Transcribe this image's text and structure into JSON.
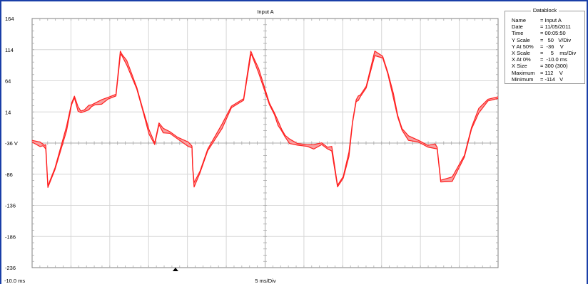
{
  "window": {
    "title": "Input A",
    "frame_color": "#1a3fa8"
  },
  "chart_data": {
    "type": "line",
    "title": "Input A",
    "xlabel": "5 ms/Div",
    "x_start_label": "-10.0 ms",
    "ylabel": "",
    "y_ticks": [
      "164",
      "114",
      "64",
      "14",
      "-36 V",
      "-86",
      "-136",
      "-186",
      "-236"
    ],
    "ylim": [
      -236,
      164
    ],
    "x_unit": "ms",
    "xlim": [
      -10,
      55
    ],
    "grid": true,
    "series": [
      {
        "color": "#ff2020",
        "envelope_fill": "#f8a0a0",
        "x": [
          -10.0,
          -8.9,
          -8.5,
          -8.3,
          -8.1,
          -7.8,
          -6.8,
          -5.2,
          -4.5,
          -4.1,
          -3.6,
          -3.2,
          -2.7,
          -2.1,
          -1.7,
          -1.2,
          -0.3,
          0.6,
          1.7,
          2.3,
          2.4,
          2.6,
          3.2,
          4.6,
          5.5,
          6.3,
          7.1,
          7.7,
          8.3,
          9.2,
          10.3,
          11.8,
          12.3,
          12.4,
          12.6,
          13.4,
          14.5,
          16.5,
          17.8,
          19.5,
          20.5,
          20.6,
          20.8,
          21.6,
          23.1,
          23.8,
          24.3,
          24.8,
          25.3,
          25.9,
          27.0,
          28.4,
          29.3,
          30.4,
          31.2,
          31.8,
          32.6,
          33.4,
          34.2,
          34.7,
          35.2,
          35.5,
          35.8,
          36.6,
          37.8,
          38.9,
          39.6,
          40.4,
          41.0,
          41.6,
          42.5,
          43.9,
          45.2,
          46.2,
          46.5,
          47.0,
          48.6,
          50.3,
          51.3,
          52.3,
          53.6,
          55.0
        ],
        "y": [
          -33,
          -38,
          -39,
          -41,
          -42,
          -106,
          -77,
          -13,
          27,
          38,
          19,
          14,
          16,
          21,
          24,
          27,
          30,
          36,
          41,
          108,
          108,
          104,
          93,
          52,
          15,
          -18,
          -37,
          -5,
          -16,
          -19,
          -28,
          -38,
          -42,
          -75,
          -103,
          -83,
          -47,
          -9,
          22,
          34,
          108,
          108,
          102,
          80,
          27,
          11,
          -4,
          -15,
          -25,
          -33,
          -38,
          -40,
          -42,
          -37,
          -44,
          -45,
          -105,
          -91,
          -54,
          -2,
          32,
          36,
          40,
          54,
          108,
          102,
          77,
          40,
          7,
          -14,
          -28,
          -33,
          -41,
          -41,
          -44,
          -97,
          -94,
          -57,
          -12,
          16,
          33,
          37
        ]
      }
    ]
  },
  "datablock": {
    "title": "Datablock",
    "rows": [
      {
        "key": "Name",
        "value": "= Input A"
      },
      {
        "key": "Date",
        "value": "= 11/05/2011"
      },
      {
        "key": "Time",
        "value": "= 00:05:50"
      },
      {
        "key": "Y Scale",
        "value": "=   50   V/Div"
      },
      {
        "key": "Y At 50%",
        "value": "=  -36    V"
      },
      {
        "key": "X Scale",
        "value": "=     5    ms/Div"
      },
      {
        "key": "X At 0%",
        "value": "=  -10.0 ms"
      },
      {
        "key": "X Size",
        "value": "= 300 (300)"
      },
      {
        "key": "Maximum",
        "value": "= 112    V"
      },
      {
        "key": "Minimum",
        "value": "= -114   V"
      }
    ]
  },
  "trigger_marker": {
    "x_ms": 10.0
  }
}
